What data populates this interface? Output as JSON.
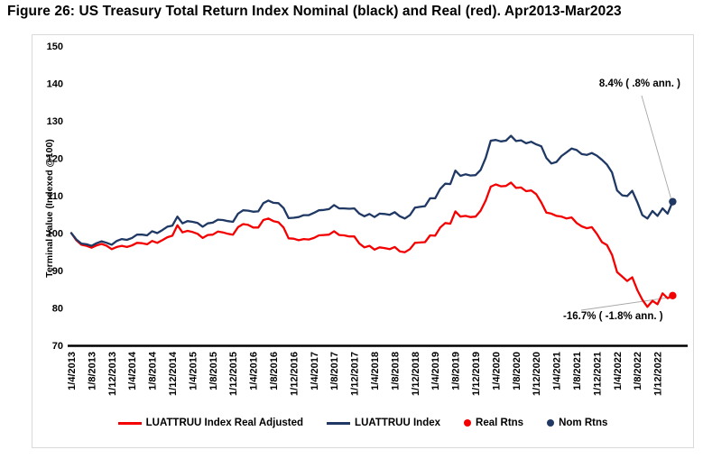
{
  "title": "Figure 26: US Treasury Total Return Index Nominal (black) and Real (red). Apr2013-Mar2023",
  "colors": {
    "real": "#f40000",
    "nominal": "#1f3864",
    "leader": "#a6a6a6",
    "axis": "#000000",
    "box_border": "#d9d9d9"
  },
  "annotations": {
    "nominal_end_label": "8.4% ( .8% ann. )",
    "real_end_label": "-16.7% ( -1.8% ann. )"
  },
  "legend": {
    "items": [
      {
        "label": "LUATTRUU Index Real Adjusted",
        "marker": "line",
        "color": "#f40000"
      },
      {
        "label": "LUATTRUU Index",
        "marker": "line",
        "color": "#1f3864"
      },
      {
        "label": "Real Rtns",
        "marker": "dot",
        "color": "#f40000"
      },
      {
        "label": "Nom Rtns",
        "marker": "dot",
        "color": "#1f3864"
      }
    ]
  },
  "chart_data": {
    "type": "line",
    "title": "Figure 26: US Treasury Total Return Index Nominal (black) and Real (red). Apr2013-Mar2023",
    "ylabel": "Terminal Value (Indexed @100)",
    "xlabel": "",
    "ylim": [
      70,
      150
    ],
    "ytick_step": 10,
    "ytick_labels": [
      "150",
      "140",
      "130",
      "120",
      "110",
      "100",
      "90",
      "80",
      "70"
    ],
    "grid": false,
    "legend_position": "bottom",
    "x_unit": "month",
    "x_start": "Apr 2013",
    "x_end": "Mar 2023",
    "x_tick_every_months": 4,
    "x_tick_labels": [
      "1/4/2013",
      "1/8/2013",
      "1/12/2013",
      "1/4/2014",
      "1/8/2014",
      "1/12/2014",
      "1/4/2015",
      "1/8/2015",
      "1/12/2015",
      "1/4/2016",
      "1/8/2016",
      "1/12/2016",
      "1/4/2017",
      "1/8/2017",
      "1/12/2017",
      "1/4/2018",
      "1/8/2018",
      "1/12/2018",
      "1/4/2019",
      "1/8/2019",
      "1/12/2019",
      "1/4/2020",
      "1/8/2020",
      "1/12/2020",
      "1/4/2021",
      "1/8/2021",
      "1/12/2021",
      "1/4/2022",
      "1/8/2022",
      "1/12/2022"
    ],
    "series": [
      {
        "name": "LUATTRUU Index",
        "color": "#1f3864",
        "end_value": 108.4,
        "end_label": "8.4% ( .8% ann. )",
        "values": [
          100.0,
          98.3,
          97.2,
          97.0,
          96.6,
          97.3,
          97.8,
          97.4,
          96.9,
          97.9,
          98.4,
          98.2,
          98.7,
          99.6,
          99.6,
          99.4,
          100.5,
          100.0,
          100.8,
          101.7,
          102.0,
          104.4,
          102.6,
          103.2,
          103.0,
          102.7,
          101.7,
          102.6,
          102.8,
          103.6,
          103.5,
          103.2,
          103.0,
          105.2,
          106.1,
          106.0,
          105.7,
          105.8,
          108.0,
          108.7,
          108.1,
          108.0,
          106.7,
          104.0,
          104.1,
          104.3,
          104.8,
          104.8,
          105.4,
          106.1,
          106.2,
          106.4,
          107.5,
          106.6,
          106.6,
          106.5,
          106.6,
          105.2,
          104.5,
          105.1,
          104.3,
          105.2,
          105.1,
          104.9,
          105.6,
          104.5,
          103.9,
          104.8,
          106.8,
          107.0,
          107.2,
          109.3,
          109.3,
          111.8,
          113.2,
          113.1,
          116.7,
          115.3,
          115.7,
          115.4,
          115.5,
          116.9,
          120.1,
          124.7,
          124.9,
          124.5,
          124.7,
          126.0,
          124.6,
          124.8,
          124.0,
          124.4,
          123.7,
          123.2,
          120.1,
          118.6,
          119.0,
          120.6,
          121.6,
          122.6,
          122.2,
          121.1,
          120.9,
          121.4,
          120.7,
          119.6,
          118.3,
          116.2,
          111.4,
          110.1,
          109.9,
          111.3,
          108.3,
          104.8,
          103.9,
          105.9,
          104.6,
          106.6,
          105.2,
          108.4
        ]
      },
      {
        "name": "LUATTRUU Index Real Adjusted",
        "color": "#f40000",
        "end_value": 83.3,
        "end_label": "-16.7% ( -1.8% ann. )",
        "values": [
          100.0,
          98.1,
          96.9,
          96.6,
          96.1,
          96.7,
          97.1,
          96.6,
          95.7,
          96.3,
          96.6,
          96.3,
          96.7,
          97.4,
          97.3,
          97.0,
          97.9,
          97.4,
          98.1,
          98.9,
          99.3,
          102.1,
          100.2,
          100.6,
          100.3,
          99.8,
          98.7,
          99.5,
          99.6,
          100.4,
          100.2,
          99.8,
          99.6,
          101.6,
          102.4,
          102.2,
          101.5,
          101.5,
          103.5,
          103.9,
          103.2,
          102.9,
          101.5,
          98.6,
          98.5,
          98.1,
          98.4,
          98.3,
          98.7,
          99.4,
          99.5,
          99.6,
          100.5,
          99.5,
          99.4,
          99.1,
          99.1,
          97.2,
          96.2,
          96.6,
          95.6,
          96.2,
          96.0,
          95.7,
          96.3,
          95.1,
          94.9,
          95.7,
          97.4,
          97.5,
          97.6,
          99.4,
          99.3,
          101.5,
          102.7,
          102.5,
          105.8,
          104.4,
          104.6,
          104.3,
          104.4,
          106.0,
          108.7,
          112.4,
          113.0,
          112.5,
          112.6,
          113.5,
          112.1,
          112.2,
          111.2,
          111.4,
          110.4,
          108.2,
          105.5,
          105.2,
          104.6,
          104.4,
          103.9,
          104.2,
          102.7,
          101.8,
          101.3,
          101.6,
          99.8,
          97.6,
          96.8,
          94.2,
          89.6,
          88.4,
          87.2,
          88.2,
          84.8,
          82.2,
          80.3,
          81.9,
          81.0,
          83.9,
          82.6,
          83.3
        ]
      }
    ]
  }
}
